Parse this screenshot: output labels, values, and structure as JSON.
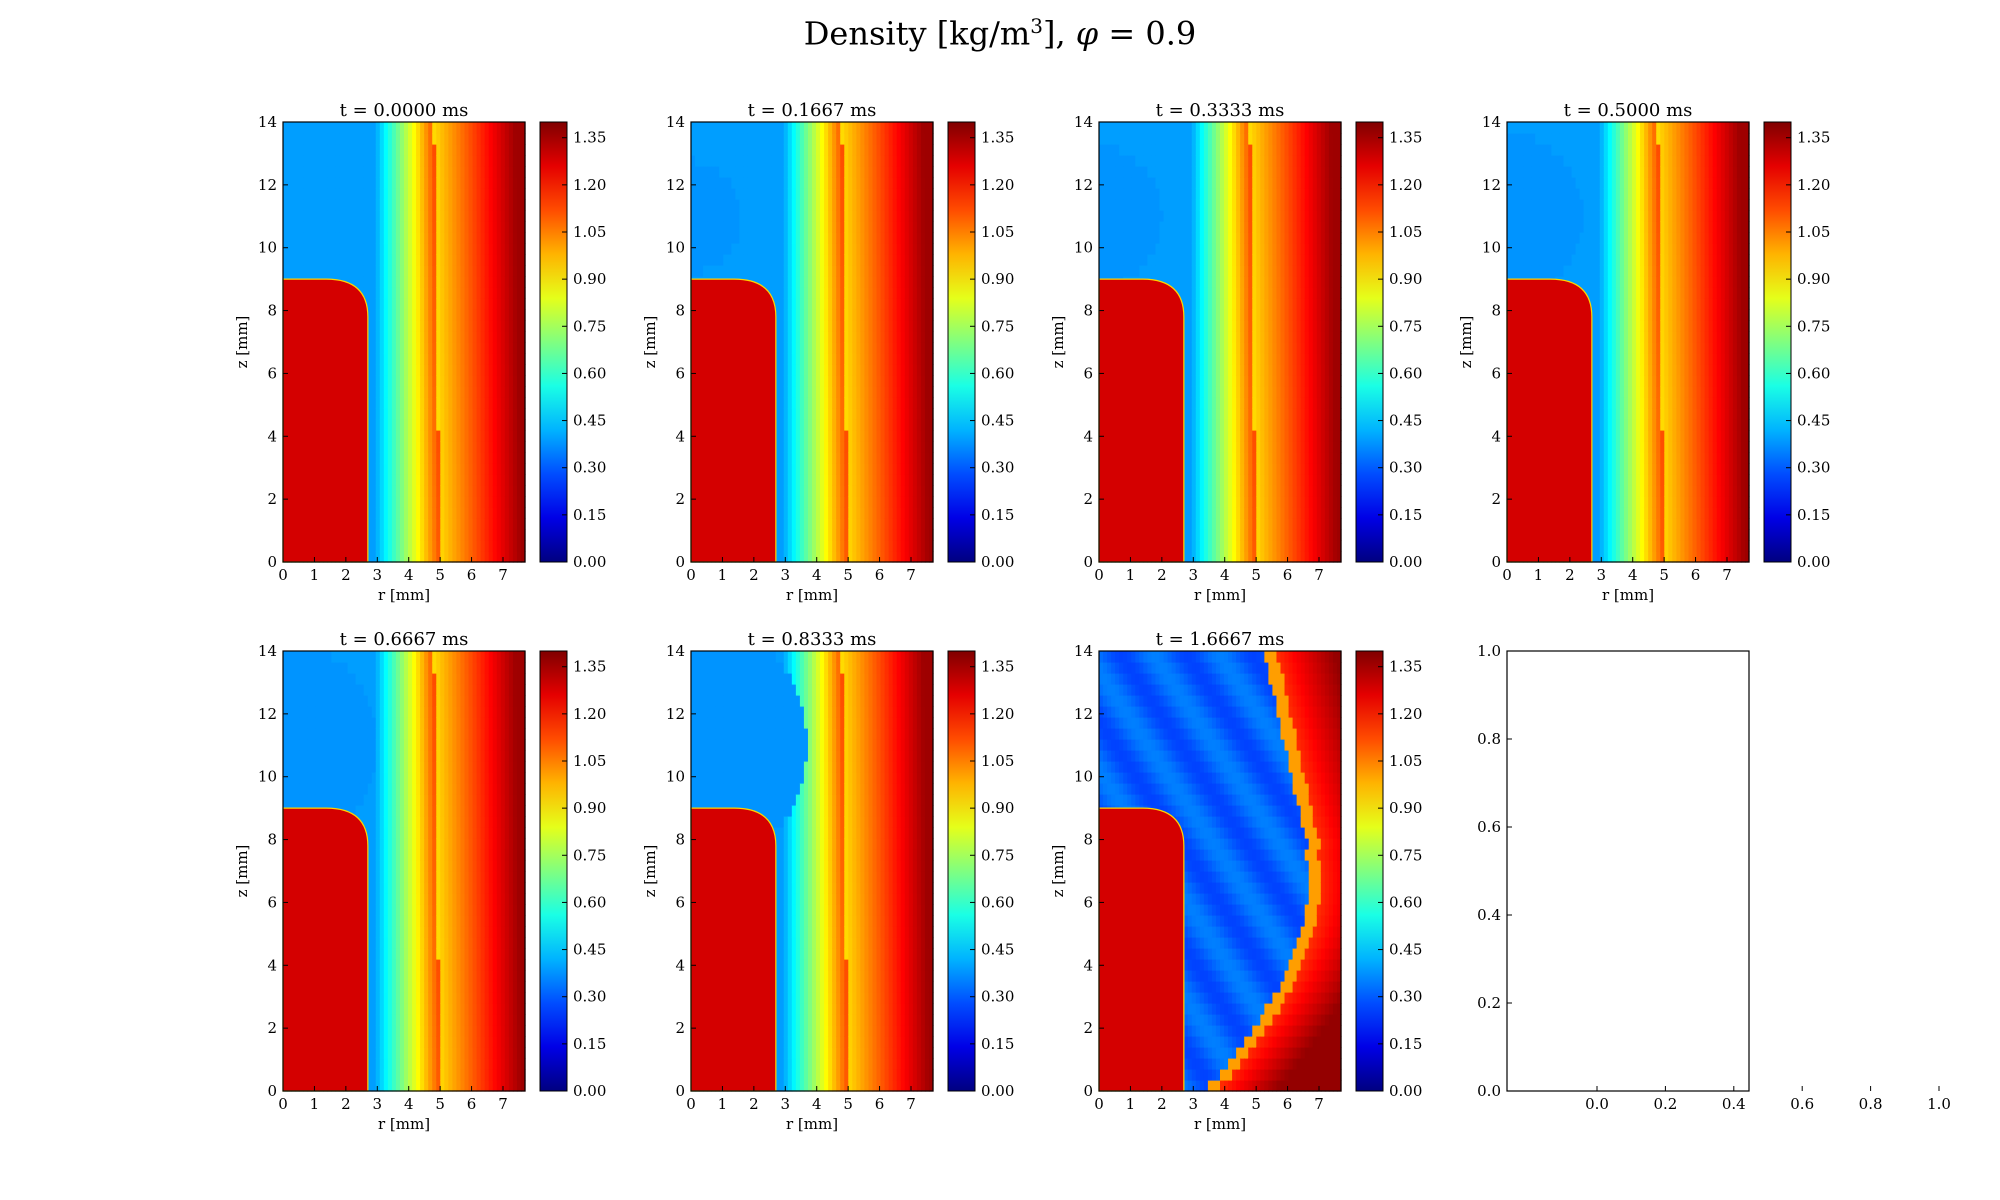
{
  "figure": {
    "title_main": "Density [kg/m",
    "title_sup": "3",
    "title_rest": "], ",
    "title_phi": "φ",
    "title_eq": " = 0.9"
  },
  "chart_data": [
    {
      "type": "heatmap",
      "title": "t = 0.0000 ms",
      "xlabel": "r [mm]",
      "ylabel": "z [mm]",
      "xlim": [
        0,
        7.7
      ],
      "ylim": [
        0,
        14
      ],
      "xticks": [
        "0",
        "1",
        "2",
        "3",
        "4",
        "5",
        "6",
        "7"
      ],
      "yticks": [
        "0",
        "2",
        "4",
        "6",
        "8",
        "10",
        "12",
        "14"
      ],
      "colorbar": {
        "range": [
          0,
          1.4
        ],
        "ticks": [
          "0.00",
          "0.15",
          "0.30",
          "0.45",
          "0.60",
          "0.75",
          "0.90",
          "1.05",
          "1.20",
          "1.35"
        ],
        "colormap": "jet"
      },
      "body_radius": 2.7,
      "body_height": 9.0,
      "front_r_bottom": 5.0,
      "front_r_top": 4.8,
      "cavity_r": 0,
      "cavity_z": 0
    },
    {
      "type": "heatmap",
      "title": "t = 0.1667 ms",
      "xlabel": "r [mm]",
      "ylabel": "z [mm]",
      "xlim": [
        0,
        7.7
      ],
      "ylim": [
        0,
        14
      ],
      "xticks": [
        "0",
        "1",
        "2",
        "3",
        "4",
        "5",
        "6",
        "7"
      ],
      "yticks": [
        "0",
        "2",
        "4",
        "6",
        "8",
        "10",
        "12",
        "14"
      ],
      "colorbar": {
        "range": [
          0,
          1.4
        ],
        "ticks": [
          "0.00",
          "0.15",
          "0.30",
          "0.45",
          "0.60",
          "0.75",
          "0.90",
          "1.05",
          "1.20",
          "1.35"
        ],
        "colormap": "jet"
      },
      "body_radius": 2.7,
      "body_height": 9.0,
      "front_r_bottom": 5.0,
      "front_r_top": 4.8,
      "cavity_r": 1.6,
      "cavity_z": 11
    },
    {
      "type": "heatmap",
      "title": "t = 0.3333 ms",
      "xlabel": "r [mm]",
      "ylabel": "z [mm]",
      "xlim": [
        0,
        7.7
      ],
      "ylim": [
        0,
        14
      ],
      "xticks": [
        "0",
        "1",
        "2",
        "3",
        "4",
        "5",
        "6",
        "7"
      ],
      "yticks": [
        "0",
        "2",
        "4",
        "6",
        "8",
        "10",
        "12",
        "14"
      ],
      "colorbar": {
        "range": [
          0,
          1.4
        ],
        "ticks": [
          "0.00",
          "0.15",
          "0.30",
          "0.45",
          "0.60",
          "0.75",
          "0.90",
          "1.05",
          "1.20",
          "1.35"
        ],
        "colormap": "jet"
      },
      "body_radius": 2.7,
      "body_height": 9.0,
      "front_r_bottom": 5.0,
      "front_r_top": 4.8,
      "cavity_r": 2.0,
      "cavity_z": 11
    },
    {
      "type": "heatmap",
      "title": "t = 0.5000 ms",
      "xlabel": "r [mm]",
      "ylabel": "z [mm]",
      "xlim": [
        0,
        7.7
      ],
      "ylim": [
        0,
        14
      ],
      "xticks": [
        "0",
        "1",
        "2",
        "3",
        "4",
        "5",
        "6",
        "7"
      ],
      "yticks": [
        "0",
        "2",
        "4",
        "6",
        "8",
        "10",
        "12",
        "14"
      ],
      "colorbar": {
        "range": [
          0,
          1.4
        ],
        "ticks": [
          "0.00",
          "0.15",
          "0.30",
          "0.45",
          "0.60",
          "0.75",
          "0.90",
          "1.05",
          "1.20",
          "1.35"
        ],
        "colormap": "jet"
      },
      "body_radius": 2.7,
      "body_height": 9.0,
      "front_r_bottom": 5.0,
      "front_r_top": 4.8,
      "cavity_r": 2.4,
      "cavity_z": 11
    },
    {
      "type": "heatmap",
      "title": "t = 0.6667 ms",
      "xlabel": "r [mm]",
      "ylabel": "z [mm]",
      "xlim": [
        0,
        7.7
      ],
      "ylim": [
        0,
        14
      ],
      "xticks": [
        "0",
        "1",
        "2",
        "3",
        "4",
        "5",
        "6",
        "7"
      ],
      "yticks": [
        "0",
        "2",
        "4",
        "6",
        "8",
        "10",
        "12",
        "14"
      ],
      "colorbar": {
        "range": [
          0,
          1.4
        ],
        "ticks": [
          "0.00",
          "0.15",
          "0.30",
          "0.45",
          "0.60",
          "0.75",
          "0.90",
          "1.05",
          "1.20",
          "1.35"
        ],
        "colormap": "jet"
      },
      "body_radius": 2.7,
      "body_height": 9.0,
      "front_r_bottom": 5.0,
      "front_r_top": 4.8,
      "cavity_r": 3.0,
      "cavity_z": 11
    },
    {
      "type": "heatmap",
      "title": "t = 0.8333 ms",
      "xlabel": "r [mm]",
      "ylabel": "z [mm]",
      "xlim": [
        0,
        7.7
      ],
      "ylim": [
        0,
        14
      ],
      "xticks": [
        "0",
        "1",
        "2",
        "3",
        "4",
        "5",
        "6",
        "7"
      ],
      "yticks": [
        "0",
        "2",
        "4",
        "6",
        "8",
        "10",
        "12",
        "14"
      ],
      "colorbar": {
        "range": [
          0,
          1.4
        ],
        "ticks": [
          "0.00",
          "0.15",
          "0.30",
          "0.45",
          "0.60",
          "0.75",
          "0.90",
          "1.05",
          "1.20",
          "1.35"
        ],
        "colormap": "jet"
      },
      "body_radius": 2.7,
      "body_height": 9.0,
      "front_r_bottom": 5.0,
      "front_r_top": 4.8,
      "cavity_r": 3.7,
      "cavity_z": 11
    },
    {
      "type": "heatmap",
      "title": "t = 1.6667 ms",
      "xlabel": "r [mm]",
      "ylabel": "z [mm]",
      "xlim": [
        0,
        7.7
      ],
      "ylim": [
        0,
        14
      ],
      "xticks": [
        "0",
        "1",
        "2",
        "3",
        "4",
        "5",
        "6",
        "7"
      ],
      "yticks": [
        "0",
        "2",
        "4",
        "6",
        "8",
        "10",
        "12",
        "14"
      ],
      "colorbar": {
        "range": [
          0,
          1.4
        ],
        "ticks": [
          "0.00",
          "0.15",
          "0.30",
          "0.45",
          "0.60",
          "0.75",
          "0.90",
          "1.05",
          "1.20",
          "1.35"
        ],
        "colormap": "jet"
      },
      "body_radius": 2.7,
      "body_height": 9.0,
      "large_cavity": true,
      "cavity_edge_top": 5.5,
      "cavity_edge_mid": 6.9,
      "cavity_edge_bottom": 3.0
    },
    {
      "type": "empty",
      "xlim": [
        0.0,
        1.0
      ],
      "ylim": [
        0.0,
        1.0
      ],
      "xticks": [
        "0.0",
        "0.2",
        "0.4",
        "0.6",
        "0.8",
        "1.0"
      ],
      "yticks": [
        "0.0",
        "0.2",
        "0.4",
        "0.6",
        "0.8",
        "1.0"
      ]
    }
  ]
}
